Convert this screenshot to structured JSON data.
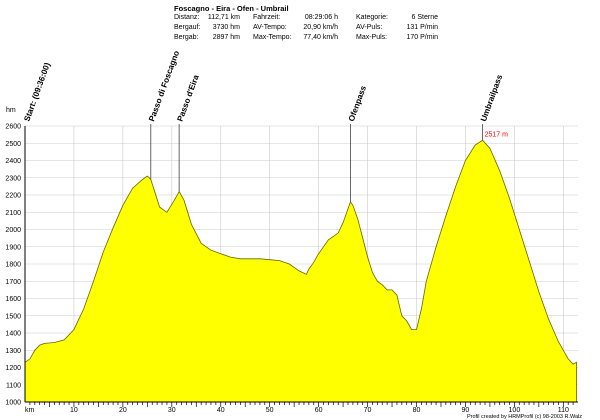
{
  "header": {
    "title": "Foscagno - Eira - Ofen - Umbrail",
    "stats": [
      {
        "label": "Distanz:",
        "value": "112,71 km"
      },
      {
        "label": "Bergauf:",
        "value": "3730 hm"
      },
      {
        "label": "Bergab:",
        "value": "2897 hm"
      },
      {
        "label": "Fahrzeit:",
        "value": "08:29:06 h"
      },
      {
        "label": "AV-Tempo:",
        "value": "20,90 km/h"
      },
      {
        "label": "Max-Tempo:",
        "value": "77,40 km/h"
      },
      {
        "label": "Kategorie:",
        "value": "6 Sterne"
      },
      {
        "label": "AV-Puls:",
        "value": "131 P/min"
      },
      {
        "label": "Max-Puls:",
        "value": "170 P/min"
      }
    ]
  },
  "footer": {
    "credit": "Profil created by HRMProfil (c) 98-2003 R.Walz"
  },
  "colors": {
    "fill": "#ffff00",
    "outline": "#666600",
    "marker": "#555555",
    "peak_label": "#ff0000"
  },
  "chart_data": {
    "type": "area",
    "xlabel": "km",
    "ylabel": "hm",
    "xlim": [
      0,
      113
    ],
    "ylim": [
      1000,
      2600
    ],
    "grid": true,
    "x_ticks": [
      10,
      20,
      30,
      40,
      50,
      60,
      70,
      80,
      90,
      100,
      110
    ],
    "y_ticks": [
      1000,
      1100,
      1200,
      1300,
      1400,
      1500,
      1600,
      1700,
      1800,
      1900,
      2000,
      2100,
      2200,
      2300,
      2400,
      2500,
      2600
    ],
    "x": [
      0,
      1,
      2,
      3,
      4,
      6,
      8,
      10,
      12,
      14,
      16,
      18,
      20,
      22,
      24,
      25,
      25.7,
      26.5,
      27.5,
      29,
      30.5,
      31.5,
      32.5,
      34,
      36,
      38,
      40,
      42,
      44,
      46,
      48,
      50,
      52,
      54,
      56,
      57.5,
      58,
      59,
      60,
      61,
      62,
      63,
      64,
      65,
      66,
      66.5,
      67,
      68,
      69,
      70,
      71,
      72,
      73,
      74,
      75,
      76,
      77,
      78,
      79,
      80,
      81,
      82,
      84,
      86,
      88,
      90,
      92,
      93.5,
      95,
      97,
      99,
      101,
      103,
      105,
      107,
      109,
      111,
      112,
      112.7
    ],
    "y": [
      1230,
      1250,
      1300,
      1330,
      1340,
      1345,
      1360,
      1420,
      1540,
      1700,
      1870,
      2010,
      2140,
      2240,
      2290,
      2310,
      2290,
      2220,
      2130,
      2100,
      2170,
      2220,
      2170,
      2030,
      1920,
      1880,
      1860,
      1840,
      1830,
      1830,
      1830,
      1825,
      1820,
      1800,
      1760,
      1740,
      1770,
      1810,
      1860,
      1900,
      1940,
      1960,
      1980,
      2040,
      2120,
      2160,
      2140,
      2060,
      1950,
      1840,
      1750,
      1700,
      1680,
      1650,
      1650,
      1620,
      1500,
      1470,
      1420,
      1420,
      1540,
      1700,
      1900,
      2080,
      2250,
      2400,
      2490,
      2517,
      2470,
      2340,
      2180,
      2000,
      1820,
      1640,
      1480,
      1350,
      1250,
      1220,
      1230
    ],
    "passes": [
      {
        "name": "Start: (09:36:00)",
        "km": 0.2
      },
      {
        "name": "Passo di Foscagno",
        "km": 25.7
      },
      {
        "name": "Passo d'Eira",
        "km": 31.5
      },
      {
        "name": "Ofenpass",
        "km": 66.5
      },
      {
        "name": "Umbrailpass",
        "km": 93.5
      }
    ],
    "annotations": [
      {
        "text": "2517 m",
        "km": 93.5,
        "elevation": 2517
      }
    ]
  }
}
